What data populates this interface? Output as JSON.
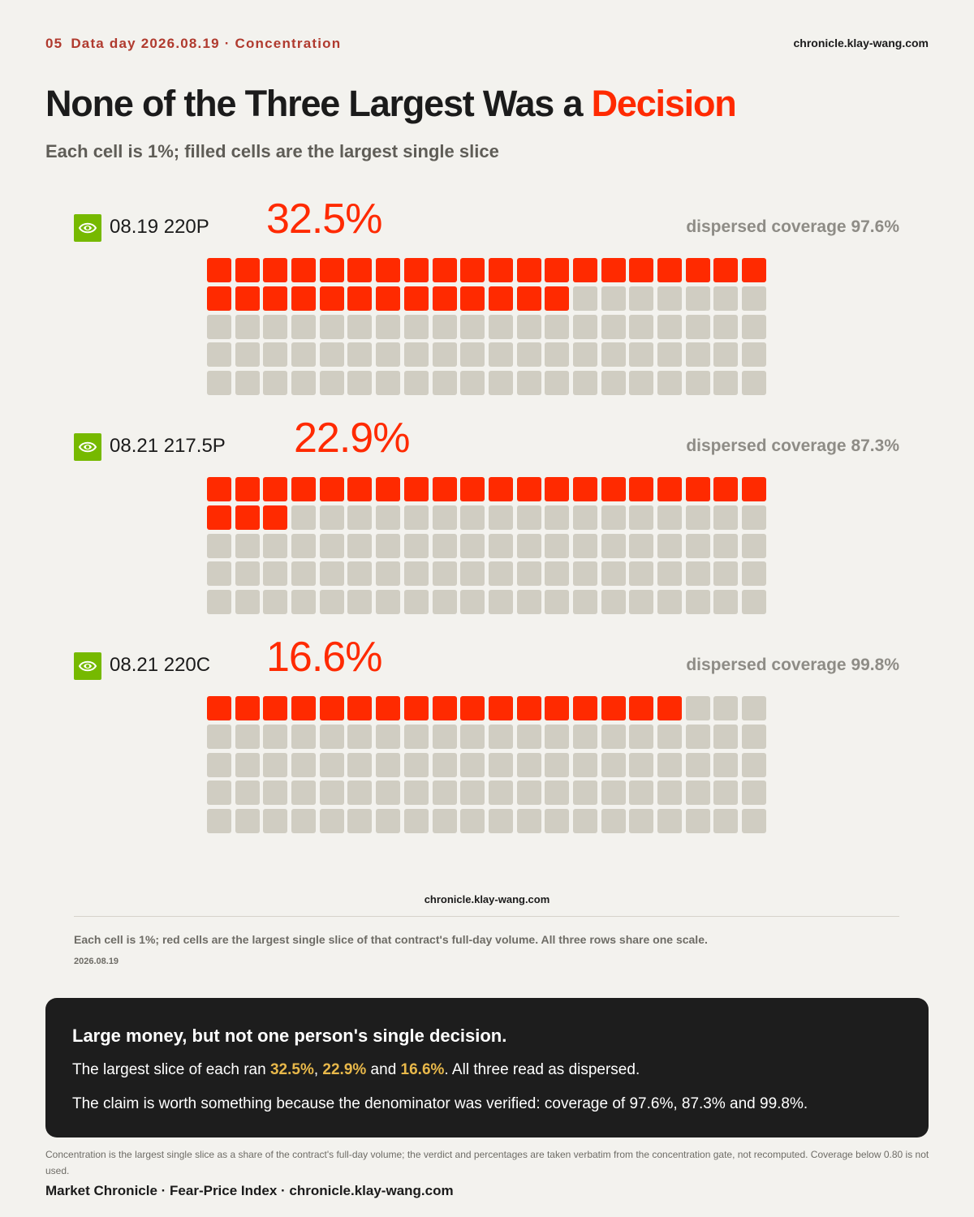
{
  "header": {
    "section_number": "05",
    "kicker": "Data day 2026.08.19 · Concentration",
    "site": "chronicle.klay-wang.com"
  },
  "title": {
    "prefix": "None of the Three Largest Was a ",
    "highlight": "Decision"
  },
  "subtitle": "Each cell is 1%; filled cells are the largest single slice",
  "colors": {
    "accent": "#ff2a00",
    "empty_cell": "#d0cdc2",
    "logo": "#76b900",
    "highlight_yellow": "#e8b84a",
    "background": "#f3f2ee"
  },
  "chart_data": {
    "type": "waffle",
    "cells_per_chart": 100,
    "cell_unit": "1%",
    "columns": 20,
    "rows": [
      {
        "contract": "08.19 220P",
        "value": 32.5,
        "value_label": "32.5%",
        "filled_cells": 33,
        "coverage_label": "dispersed coverage 97.6%",
        "logo_icon": "nvidia-logo-icon"
      },
      {
        "contract": "08.21 217.5P",
        "value": 22.9,
        "value_label": "22.9%",
        "filled_cells": 23,
        "coverage_label": "dispersed coverage 87.3%",
        "logo_icon": "nvidia-logo-icon"
      },
      {
        "contract": "08.21 220C",
        "value": 16.6,
        "value_label": "16.6%",
        "filled_cells": 17,
        "coverage_label": "dispersed coverage 99.8%",
        "logo_icon": "nvidia-logo-icon"
      }
    ]
  },
  "chart_footer": {
    "site": "chronicle.klay-wang.com",
    "note": "Each cell is 1%; red cells are the largest single slice of that contract's full-day volume. All three rows share one scale.",
    "date": "2026.08.19"
  },
  "summary": {
    "heading": "Large money, but not one person's single decision.",
    "line1": {
      "pre": "The largest slice of each ran ",
      "v1": "32.5%",
      "sep1": ", ",
      "v2": "22.9%",
      "sep2": " and ",
      "v3": "16.6%",
      "post": ". All three read as dispersed."
    },
    "line2": "The claim is worth something because the denominator was verified: coverage of 97.6%, 87.3% and 99.8%."
  },
  "footnote": "Concentration is the largest single slice as a share of the contract's full-day volume; the verdict and percentages are taken verbatim from the concentration gate, not recomputed. Coverage below 0.80 is not used.",
  "brand": "Market Chronicle · Fear-Price Index · chronicle.klay-wang.com"
}
